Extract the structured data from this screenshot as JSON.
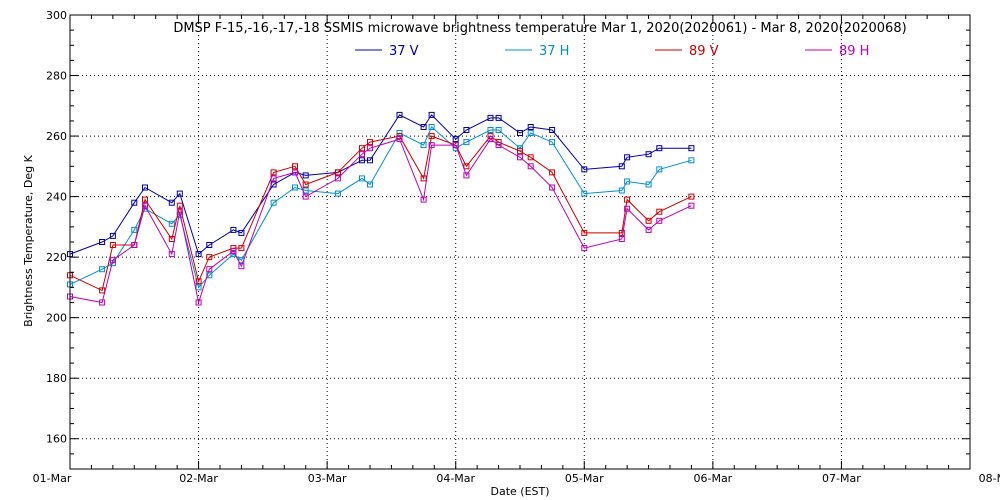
{
  "chart_data": {
    "type": "line",
    "title": "DMSP F-15,-16,-17,-18 SSMIS microwave brightness temperature Mar  1, 2020(2020061) - Mar  8, 2020(2020068)",
    "xlabel": "Date (EST)",
    "ylabel": "Brightness Temperature, Deg K",
    "x_tick_labels": [
      "01-Mar",
      "02-Mar",
      "03-Mar",
      "04-Mar",
      "05-Mar",
      "06-Mar",
      "07-Mar",
      "08-Mar"
    ],
    "y_tick_labels": [
      "160",
      "180",
      "200",
      "220",
      "240",
      "260",
      "280",
      "300"
    ],
    "xlim": [
      "2020-03-01 00:00",
      "2020-03-08 00:00"
    ],
    "ylim": [
      150,
      300
    ],
    "grid": true,
    "legend_position": "top-center",
    "series": [
      {
        "name": "37 V",
        "color": "#0000aa",
        "points": [
          [
            "2020-03-01 00:00",
            221
          ],
          [
            "2020-03-01 06:00",
            225
          ],
          [
            "2020-03-01 08:00",
            227
          ],
          [
            "2020-03-01 12:00",
            238
          ],
          [
            "2020-03-01 14:00",
            243
          ],
          [
            "2020-03-01 19:00",
            238
          ],
          [
            "2020-03-01 20:30",
            241
          ],
          [
            "2020-03-02 00:00",
            221
          ],
          [
            "2020-03-02 02:00",
            224
          ],
          [
            "2020-03-02 06:30",
            229
          ],
          [
            "2020-03-02 08:00",
            228
          ],
          [
            "2020-03-02 14:00",
            244
          ],
          [
            "2020-03-02 18:00",
            248
          ],
          [
            "2020-03-02 20:00",
            247
          ],
          [
            "2020-03-03 02:00",
            248
          ],
          [
            "2020-03-03 06:30",
            252
          ],
          [
            "2020-03-03 08:00",
            252
          ],
          [
            "2020-03-03 13:30",
            267
          ],
          [
            "2020-03-03 18:00",
            263
          ],
          [
            "2020-03-03 19:30",
            267
          ],
          [
            "2020-03-04 00:00",
            259
          ],
          [
            "2020-03-04 02:00",
            262
          ],
          [
            "2020-03-04 06:30",
            266
          ],
          [
            "2020-03-04 08:00",
            266
          ],
          [
            "2020-03-04 12:00",
            261
          ],
          [
            "2020-03-04 14:00",
            263
          ],
          [
            "2020-03-04 18:00",
            262
          ],
          [
            "2020-03-05 00:00",
            249
          ],
          [
            "2020-03-05 07:00",
            250
          ],
          [
            "2020-03-05 08:00",
            253
          ],
          [
            "2020-03-05 12:00",
            254
          ],
          [
            "2020-03-05 14:00",
            256
          ],
          [
            "2020-03-05 20:00",
            256
          ]
        ]
      },
      {
        "name": "37 H",
        "color": "#0090d0",
        "points": [
          [
            "2020-03-01 00:00",
            211
          ],
          [
            "2020-03-01 06:00",
            216
          ],
          [
            "2020-03-01 08:00",
            218
          ],
          [
            "2020-03-01 12:00",
            229
          ],
          [
            "2020-03-01 14:00",
            236
          ],
          [
            "2020-03-01 19:00",
            231
          ],
          [
            "2020-03-01 20:30",
            234
          ],
          [
            "2020-03-02 00:00",
            210
          ],
          [
            "2020-03-02 02:00",
            214
          ],
          [
            "2020-03-02 06:30",
            221
          ],
          [
            "2020-03-02 08:00",
            219
          ],
          [
            "2020-03-02 14:00",
            238
          ],
          [
            "2020-03-02 18:00",
            243
          ],
          [
            "2020-03-02 20:00",
            242
          ],
          [
            "2020-03-03 02:00",
            241
          ],
          [
            "2020-03-03 06:30",
            246
          ],
          [
            "2020-03-03 08:00",
            244
          ],
          [
            "2020-03-03 13:30",
            261
          ],
          [
            "2020-03-03 18:00",
            257
          ],
          [
            "2020-03-03 19:30",
            263
          ],
          [
            "2020-03-04 00:00",
            256
          ],
          [
            "2020-03-04 02:00",
            258
          ],
          [
            "2020-03-04 06:30",
            262
          ],
          [
            "2020-03-04 08:00",
            262
          ],
          [
            "2020-03-04 12:00",
            256
          ],
          [
            "2020-03-04 14:00",
            261
          ],
          [
            "2020-03-04 18:00",
            258
          ],
          [
            "2020-03-05 00:00",
            241
          ],
          [
            "2020-03-05 07:00",
            242
          ],
          [
            "2020-03-05 08:00",
            245
          ],
          [
            "2020-03-05 12:00",
            244
          ],
          [
            "2020-03-05 14:00",
            249
          ],
          [
            "2020-03-05 20:00",
            252
          ]
        ]
      },
      {
        "name": "89 V",
        "color": "#cc0000",
        "points": [
          [
            "2020-03-01 00:00",
            214
          ],
          [
            "2020-03-01 06:00",
            209
          ],
          [
            "2020-03-01 08:00",
            224
          ],
          [
            "2020-03-01 12:00",
            224
          ],
          [
            "2020-03-01 14:00",
            239
          ],
          [
            "2020-03-01 19:00",
            226
          ],
          [
            "2020-03-01 20:30",
            237
          ],
          [
            "2020-03-02 00:00",
            212
          ],
          [
            "2020-03-02 02:00",
            220
          ],
          [
            "2020-03-02 06:30",
            223
          ],
          [
            "2020-03-02 08:00",
            223
          ],
          [
            "2020-03-02 14:00",
            248
          ],
          [
            "2020-03-02 18:00",
            250
          ],
          [
            "2020-03-02 20:00",
            244
          ],
          [
            "2020-03-03 02:00",
            248
          ],
          [
            "2020-03-03 06:30",
            256
          ],
          [
            "2020-03-03 08:00",
            258
          ],
          [
            "2020-03-03 13:30",
            260
          ],
          [
            "2020-03-03 18:00",
            246
          ],
          [
            "2020-03-03 19:30",
            260
          ],
          [
            "2020-03-04 00:00",
            257
          ],
          [
            "2020-03-04 02:00",
            250
          ],
          [
            "2020-03-04 06:30",
            260
          ],
          [
            "2020-03-04 08:00",
            258
          ],
          [
            "2020-03-04 12:00",
            255
          ],
          [
            "2020-03-04 14:00",
            253
          ],
          [
            "2020-03-04 18:00",
            248
          ],
          [
            "2020-03-05 00:00",
            228
          ],
          [
            "2020-03-05 07:00",
            228
          ],
          [
            "2020-03-05 08:00",
            239
          ],
          [
            "2020-03-05 12:00",
            232
          ],
          [
            "2020-03-05 14:00",
            235
          ],
          [
            "2020-03-05 20:00",
            240
          ]
        ]
      },
      {
        "name": "89 H",
        "color": "#bb00bb",
        "points": [
          [
            "2020-03-01 00:00",
            207
          ],
          [
            "2020-03-01 06:00",
            205
          ],
          [
            "2020-03-01 08:00",
            219
          ],
          [
            "2020-03-01 12:00",
            224
          ],
          [
            "2020-03-01 14:00",
            237
          ],
          [
            "2020-03-01 19:00",
            221
          ],
          [
            "2020-03-01 20:30",
            235
          ],
          [
            "2020-03-02 00:00",
            205
          ],
          [
            "2020-03-02 02:00",
            216
          ],
          [
            "2020-03-02 06:30",
            222
          ],
          [
            "2020-03-02 08:00",
            217
          ],
          [
            "2020-03-02 14:00",
            246
          ],
          [
            "2020-03-02 18:00",
            248
          ],
          [
            "2020-03-02 20:00",
            240
          ],
          [
            "2020-03-03 02:00",
            246
          ],
          [
            "2020-03-03 06:30",
            254
          ],
          [
            "2020-03-03 08:00",
            256
          ],
          [
            "2020-03-03 13:30",
            259
          ],
          [
            "2020-03-03 18:00",
            239
          ],
          [
            "2020-03-03 19:30",
            257
          ],
          [
            "2020-03-04 00:00",
            257
          ],
          [
            "2020-03-04 02:00",
            247
          ],
          [
            "2020-03-04 06:30",
            259
          ],
          [
            "2020-03-04 08:00",
            257
          ],
          [
            "2020-03-04 12:00",
            253
          ],
          [
            "2020-03-04 14:00",
            250
          ],
          [
            "2020-03-04 18:00",
            243
          ],
          [
            "2020-03-05 00:00",
            223
          ],
          [
            "2020-03-05 07:00",
            226
          ],
          [
            "2020-03-05 08:00",
            236
          ],
          [
            "2020-03-05 12:00",
            229
          ],
          [
            "2020-03-05 14:00",
            232
          ],
          [
            "2020-03-05 20:00",
            237
          ]
        ]
      }
    ]
  }
}
